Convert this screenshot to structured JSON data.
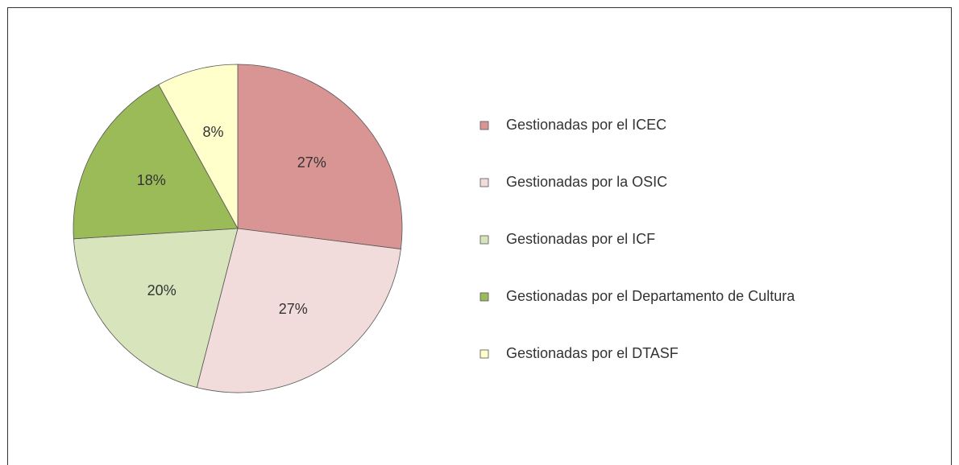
{
  "chart_data": {
    "type": "pie",
    "categories": [
      "Gestionadas por el ICEC",
      "Gestionadas por la OSIC",
      "Gestionadas por el ICF",
      "Gestionadas por el Departamento de Cultura",
      "Gestionadas por el DTASF"
    ],
    "values": [
      27,
      27,
      20,
      18,
      8
    ],
    "value_labels": [
      "27%",
      "27%",
      "20%",
      "18%",
      "8%"
    ],
    "colors": [
      "#d99594",
      "#f2dcdb",
      "#d7e4bc",
      "#9bbb59",
      "#ffffcc"
    ],
    "legend": "right"
  }
}
